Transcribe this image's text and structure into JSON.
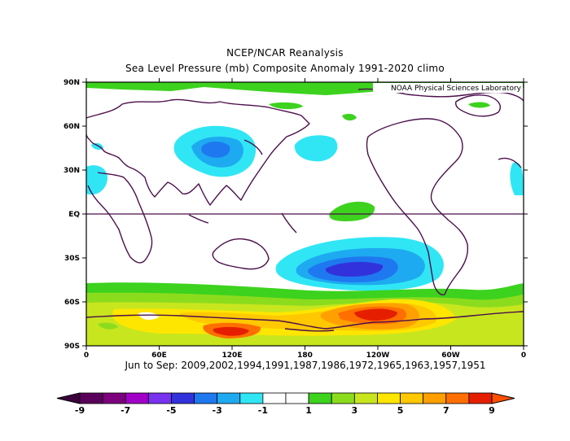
{
  "title": "NCEP/NCAR Reanalysis",
  "subtitle": "Sea Level Pressure (mb) Composite Anomaly 1991-2020 climo",
  "credit": "NOAA Physical Sciences Laboratory",
  "caption": "Jun to Sep: 2009,2002,1994,1991,1987,1986,1972,1965,1963,1957,1951",
  "lat_ticks": [
    "90N",
    "60N",
    "30N",
    "EQ",
    "30S",
    "60S",
    "90S"
  ],
  "lon_ticks": [
    "0",
    "60E",
    "120E",
    "180",
    "120W",
    "60W",
    "0"
  ],
  "colorbar": {
    "labels": [
      "-9",
      "-7",
      "-5",
      "-3",
      "-1",
      "1",
      "3",
      "5",
      "7",
      "9"
    ],
    "colors": [
      "#5a005a",
      "#7d007d",
      "#a000c8",
      "#7832f0",
      "#3232dc",
      "#1e78f0",
      "#1eaaf0",
      "#30e6f5",
      "#ffffff",
      "#ffffff",
      "#3cd21e",
      "#8cdc1e",
      "#c8e61e",
      "#ffe600",
      "#ffc800",
      "#ffa000",
      "#ff6e00",
      "#e61e00"
    ],
    "under_color": "#3c003c",
    "over_color": "#ff5000"
  }
}
